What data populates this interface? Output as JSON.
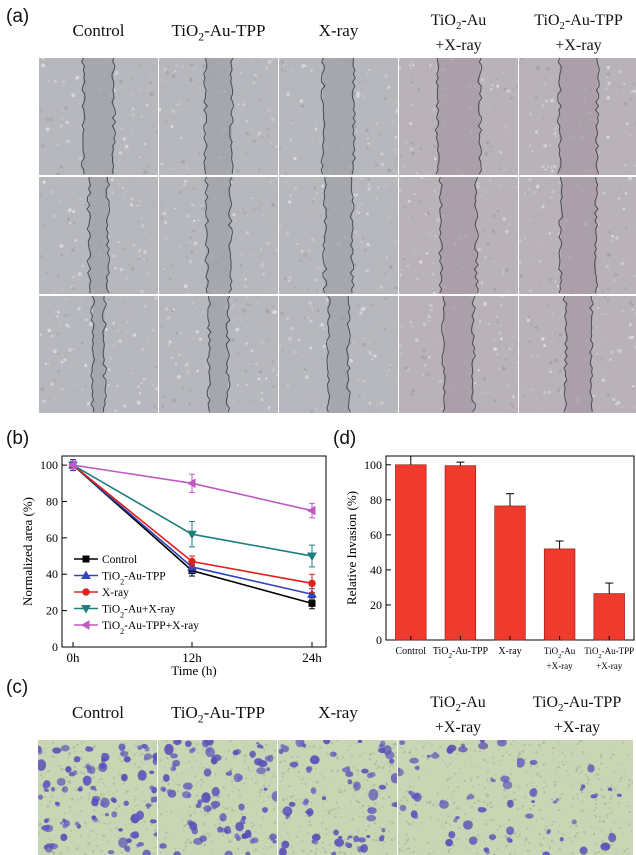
{
  "panels": {
    "a": {
      "letter": "(a)",
      "columns": [
        {
          "line1": "Control",
          "line2": ""
        },
        {
          "line1": "TiO2-Au-TPP",
          "line2": ""
        },
        {
          "line1": "X-ray",
          "line2": ""
        },
        {
          "line1": "TiO2-Au",
          "line2": "+X-ray"
        },
        {
          "line1": "TiO2-Au-TPP",
          "line2": "+X-ray"
        }
      ],
      "gap_widths": [
        [
          0.26,
          0.22,
          0.26,
          0.36,
          0.32
        ],
        [
          0.16,
          0.2,
          0.23,
          0.3,
          0.3
        ],
        [
          0.1,
          0.16,
          0.17,
          0.25,
          0.22
        ]
      ]
    },
    "b": {
      "letter": "(b)"
    },
    "c": {
      "letter": "(c)",
      "columns": [
        {
          "line1": "Control",
          "line2": ""
        },
        {
          "line1": "TiO2-Au-TPP",
          "line2": ""
        },
        {
          "line1": "X-ray",
          "line2": ""
        },
        {
          "line1": "TiO2-Au",
          "line2": "+X-ray"
        },
        {
          "line1": "TiO2-Au-TPP",
          "line2": "+X-ray"
        }
      ],
      "stain_density": [
        1.0,
        0.95,
        0.75,
        0.5,
        0.25
      ]
    },
    "d": {
      "letter": "(d)"
    }
  },
  "chart_data": [
    {
      "id": "b",
      "type": "line",
      "x": [
        "0h",
        "12h",
        "24h"
      ],
      "xlabel": "Time (h)",
      "ylabel": "Normalized area (%)",
      "ylim": [
        0,
        105
      ],
      "yticks": [
        0,
        20,
        40,
        60,
        80,
        100
      ],
      "legend_position": "bottom-left",
      "series": [
        {
          "name": "Control",
          "values": [
            100,
            42,
            24
          ],
          "errors": [
            3,
            3,
            3
          ],
          "color": "#000000",
          "marker": "square"
        },
        {
          "name": "TiO2-Au-TPP",
          "values": [
            100,
            44,
            29
          ],
          "errors": [
            3,
            3,
            3
          ],
          "color": "#3344bb",
          "marker": "triangle-up"
        },
        {
          "name": "X-ray",
          "values": [
            100,
            47,
            35
          ],
          "errors": [
            2,
            3,
            5
          ],
          "color": "#e0201b",
          "marker": "circle"
        },
        {
          "name": "TiO2-Au+X-ray",
          "values": [
            100,
            62,
            50
          ],
          "errors": [
            2,
            7,
            6
          ],
          "color": "#1f7f7f",
          "marker": "triangle-down"
        },
        {
          "name": "TiO2-Au-TPP+X-ray",
          "values": [
            100,
            90,
            75
          ],
          "errors": [
            2,
            5,
            4
          ],
          "color": "#c05ac0",
          "marker": "triangle-left"
        }
      ]
    },
    {
      "id": "d",
      "type": "bar",
      "categories": [
        {
          "line1": "Control",
          "line2": ""
        },
        {
          "line1": "TiO2-Au-TPP",
          "line2": ""
        },
        {
          "line1": "X-ray",
          "line2": ""
        },
        {
          "line1": "TiO2-Au",
          "line2": "+X-ray"
        },
        {
          "line1": "TiO2-Au-TPP",
          "line2": "+X-ray"
        }
      ],
      "values": [
        100,
        99.5,
        76.5,
        52,
        26.5
      ],
      "errors": [
        5,
        2,
        7,
        4.5,
        6
      ],
      "ylabel": "Relative Invasion (%)",
      "ylim": [
        0,
        105
      ],
      "yticks": [
        0,
        20,
        40,
        60,
        80,
        100
      ],
      "bar_color": "#f03a2e"
    }
  ]
}
